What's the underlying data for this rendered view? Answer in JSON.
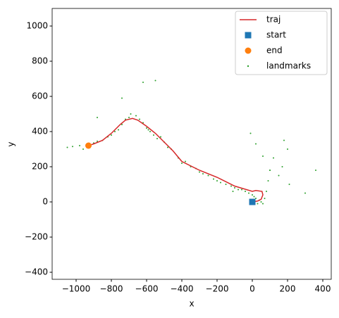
{
  "chart_data": {
    "type": "scatter",
    "xlabel": "x",
    "ylabel": "y",
    "xlim": [
      -1136,
      448
    ],
    "ylim": [
      -440,
      1100
    ],
    "xticks": [
      {
        "value": -1000,
        "label": "−1000"
      },
      {
        "value": -800,
        "label": "−800"
      },
      {
        "value": -600,
        "label": "−600"
      },
      {
        "value": -400,
        "label": "−400"
      },
      {
        "value": -200,
        "label": "−200"
      },
      0,
      200,
      400
    ],
    "yticks": [
      {
        "value": -400,
        "label": "−400"
      },
      {
        "value": -200,
        "label": "−200"
      },
      0,
      200,
      400,
      600,
      800,
      1000
    ],
    "legend": "upper right",
    "series": [
      {
        "name": "traj",
        "kind": "line",
        "color": "#d62728",
        "x": [
          0,
          30,
          50,
          60,
          55,
          20,
          0,
          -100,
          -200,
          -300,
          -400,
          -450,
          -500,
          -550,
          -600,
          -650,
          -680,
          -720,
          -750,
          -800,
          -850,
          -900,
          -930
        ],
        "y": [
          0,
          5,
          15,
          40,
          60,
          65,
          60,
          90,
          140,
          180,
          230,
          290,
          340,
          390,
          430,
          465,
          475,
          465,
          440,
          390,
          350,
          330,
          320
        ]
      },
      {
        "name": "start",
        "kind": "square",
        "color": "#1f77b4",
        "x": [
          0
        ],
        "y": [
          0
        ]
      },
      {
        "name": "end",
        "kind": "circle",
        "color": "#ff7f0e",
        "x": [
          -930
        ],
        "y": [
          320
        ]
      },
      {
        "name": "landmarks",
        "kind": "dot",
        "color": "#2ca02c",
        "x": [
          -1050,
          -1020,
          -980,
          -960,
          -900,
          -880,
          -850,
          -820,
          -800,
          -780,
          -760,
          -740,
          -720,
          -700,
          -690,
          -660,
          -640,
          -620,
          -600,
          -590,
          -580,
          -560,
          -540,
          -520,
          -500,
          -480,
          -460,
          -420,
          -400,
          -380,
          -350,
          -320,
          -300,
          -280,
          -250,
          -220,
          -200,
          -180,
          -150,
          -120,
          -100,
          -80,
          -60,
          -40,
          -20,
          0,
          10,
          20,
          30,
          40,
          50,
          60,
          70,
          80,
          90,
          100,
          120,
          150,
          170,
          200,
          210,
          300,
          360,
          -740,
          -620,
          -550,
          -880,
          -110,
          -10,
          20,
          60,
          100,
          180
        ],
        "y": [
          310,
          315,
          320,
          300,
          335,
          345,
          350,
          370,
          380,
          400,
          410,
          440,
          470,
          480,
          500,
          490,
          470,
          450,
          420,
          410,
          400,
          380,
          360,
          370,
          340,
          310,
          300,
          250,
          220,
          230,
          200,
          190,
          170,
          160,
          150,
          130,
          120,
          110,
          100,
          90,
          80,
          70,
          70,
          60,
          50,
          40,
          30,
          20,
          -10,
          10,
          0,
          -10,
          20,
          60,
          120,
          180,
          250,
          150,
          200,
          300,
          100,
          50,
          180,
          590,
          680,
          690,
          480,
          60,
          390,
          330,
          260,
          180,
          350
        ]
      }
    ]
  }
}
